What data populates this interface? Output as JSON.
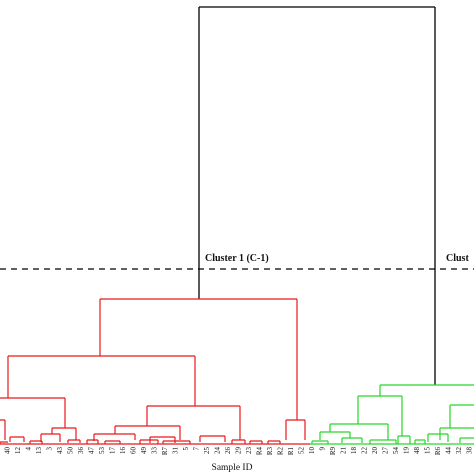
{
  "threshold_label_1": "Cluster 1 (C-1)",
  "threshold_label_2": "Clust",
  "xlabel": "Sample ID",
  "colors": {
    "cluster1": "#e8191b",
    "cluster2": "#27d627",
    "root": "#000000"
  },
  "leaves": [
    "40",
    "12",
    "4",
    "13",
    "3",
    "43",
    "50",
    "36",
    "47",
    "53",
    "17",
    "16",
    "60",
    "49",
    "33",
    "R7",
    "31",
    "5",
    "7",
    "25",
    "24",
    "26",
    "29",
    "23",
    "R4",
    "R3",
    "R2",
    "R1",
    "52",
    "10",
    "9",
    "R9",
    "21",
    "18",
    "22",
    "20",
    "27",
    "54",
    "19",
    "48",
    "15",
    "R6",
    "44",
    "32",
    "38"
  ]
}
